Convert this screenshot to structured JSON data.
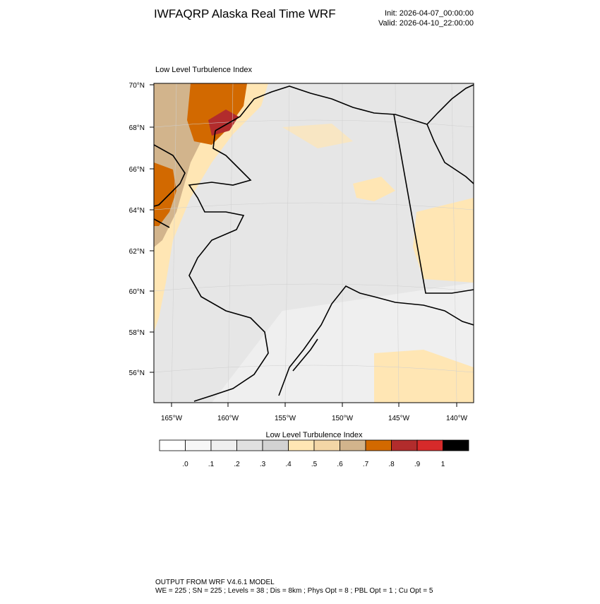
{
  "header": {
    "title": "IWFAQRP Alaska Real Time WRF",
    "init": "Init: 2026-04-07_00:00:00",
    "valid": "Valid: 2026-04-10_22:00:00"
  },
  "map": {
    "title": "Low Level Turbulence Index",
    "lat_labels": [
      "70°N",
      "68°N",
      "66°N",
      "64°N",
      "62°N",
      "60°N",
      "58°N",
      "56°N"
    ],
    "lon_labels": [
      "165°W",
      "160°W",
      "155°W",
      "150°W",
      "145°W",
      "140°W"
    ]
  },
  "colorbar": {
    "title": "Low Level Turbulence Index",
    "colors": [
      "#ffffff",
      "#f7f7f7",
      "#efefef",
      "#e0e0e0",
      "#d2d2d2",
      "#ffe6b4",
      "#f3d6a6",
      "#d2b48c",
      "#d26900",
      "#b22c2c",
      "#d62a2a",
      "#000000"
    ],
    "labels": [
      ".0",
      ".1",
      ".2",
      ".3",
      ".4",
      ".5",
      ".6",
      ".7",
      ".8",
      ".9",
      "1"
    ]
  },
  "footer": {
    "line1": "OUTPUT FROM WRF V4.6.1 MODEL",
    "line2": "WE = 225 ; SN = 225 ; Levels = 38 ; Dis = 8km ; Phys Opt = 8 ; PBL Opt = 1 ; Cu Opt = 5"
  }
}
